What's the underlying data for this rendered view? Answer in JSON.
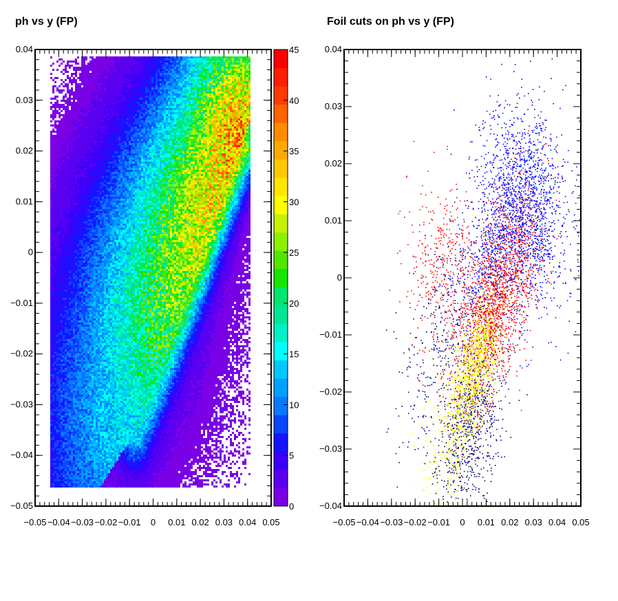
{
  "chart_data": [
    {
      "type": "heatmap",
      "title": "ph vs y (FP)",
      "xlabel": "",
      "ylabel": "",
      "xlim": [
        -0.05,
        0.05
      ],
      "ylim": [
        -0.05,
        0.04
      ],
      "x_ticks": [
        "−0.05",
        "−0.04",
        "−0.03",
        "−0.02",
        "−0.01",
        "0",
        "0.01",
        "0.02",
        "0.03",
        "0.04",
        "0.05"
      ],
      "y_ticks": [
        "0.04",
        "0.03",
        "0.02",
        "0.01",
        "0",
        "−0.01",
        "−0.02",
        "−0.03",
        "−0.04",
        "−0.05"
      ],
      "colorbar": {
        "range": [
          0,
          45
        ],
        "ticks": [
          "45",
          "40",
          "35",
          "30",
          "25",
          "20",
          "15",
          "10",
          "5",
          "0"
        ],
        "palette": [
          "#7a00e6",
          "#5a00f0",
          "#3c00fa",
          "#1414ff",
          "#0a46ff",
          "#0a78ff",
          "#00a0ff",
          "#00c8ff",
          "#00ffff",
          "#00f0c8",
          "#00e696",
          "#00e66e",
          "#14e600",
          "#50e600",
          "#8cf000",
          "#c8f000",
          "#ffff00",
          "#ffe600",
          "#ffc800",
          "#ffaa00",
          "#ff8c00",
          "#ff6400",
          "#ff3c00",
          "#ff1e00",
          "#ff0000"
        ]
      },
      "density_ridge": [
        {
          "x": 0.036,
          "y": 0.02,
          "z": 30
        },
        {
          "x": 0.028,
          "y": 0.005,
          "z": 32
        },
        {
          "x": 0.02,
          "y": -0.008,
          "z": 25
        },
        {
          "x": 0.01,
          "y": -0.02,
          "z": 16
        },
        {
          "x": 0.0,
          "y": -0.03,
          "z": 10
        }
      ]
    },
    {
      "type": "scatter",
      "title": "Foil cuts on ph vs y (FP)",
      "xlabel": "",
      "ylabel": "",
      "xlim": [
        -0.05,
        0.05
      ],
      "ylim": [
        -0.04,
        0.04
      ],
      "x_ticks": [
        "−0.05",
        "−0.04",
        "−0.03",
        "−0.02",
        "−0.01",
        "0",
        "0.01",
        "0.02",
        "0.03",
        "0.04",
        "0.05"
      ],
      "y_ticks": [
        "0.04",
        "0.03",
        "0.02",
        "0.01",
        "0",
        "−0.01",
        "−0.02",
        "−0.03",
        "−0.04"
      ],
      "series_colors": [
        "#0000ff",
        "#ff0000",
        "#ffff00",
        "#000080"
      ]
    }
  ]
}
